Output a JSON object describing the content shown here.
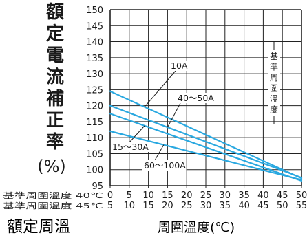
{
  "chart_data": {
    "type": "line",
    "ylabel_chars": [
      "額",
      "定",
      "電",
      "流",
      "補",
      "正",
      "率"
    ],
    "ylabel_unit": "(%)",
    "ylim": [
      95,
      150
    ],
    "y_ticks": [
      95,
      100,
      105,
      110,
      115,
      120,
      125,
      130,
      135,
      140,
      145,
      150
    ],
    "xlim": [
      0,
      50
    ],
    "x_rows": [
      {
        "label": "基準周圍溫度 40℃",
        "ticks": [
          "0",
          "5",
          "10",
          "15",
          "20",
          "25",
          "30",
          "35",
          "40",
          "45",
          "50"
        ]
      },
      {
        "label": "基準周圍溫度 45℃",
        "ticks": [
          "5",
          "10",
          "15",
          "20",
          "25",
          "30",
          "35",
          "40",
          "45",
          "50",
          "55"
        ]
      }
    ],
    "xlabel": "周圍溫度(℃)",
    "bottom_title": "額定周溫",
    "reference_label": "基準周圍溫度",
    "reference_x": 40,
    "grid": true,
    "series": [
      {
        "name": "10A",
        "x": [
          0,
          50
        ],
        "y": [
          124.5,
          97.3
        ]
      },
      {
        "name": "40～50A",
        "x": [
          0,
          50
        ],
        "y": [
          120,
          97.5
        ]
      },
      {
        "name": "15～30A",
        "x": [
          0,
          50
        ],
        "y": [
          117.5,
          96.5
        ]
      },
      {
        "name": "60～100A",
        "x": [
          0,
          50
        ],
        "y": [
          112,
          96.8
        ]
      }
    ],
    "annotations": [
      {
        "text": "10A",
        "series": 0
      },
      {
        "text": "40～50A",
        "series": 1
      },
      {
        "text": "15～30A",
        "series": 2
      },
      {
        "text": "60～100A",
        "series": 3
      }
    ],
    "colors": {
      "line": "#29a8e0",
      "grid": "#222222",
      "text": "#1a1a1a"
    }
  }
}
